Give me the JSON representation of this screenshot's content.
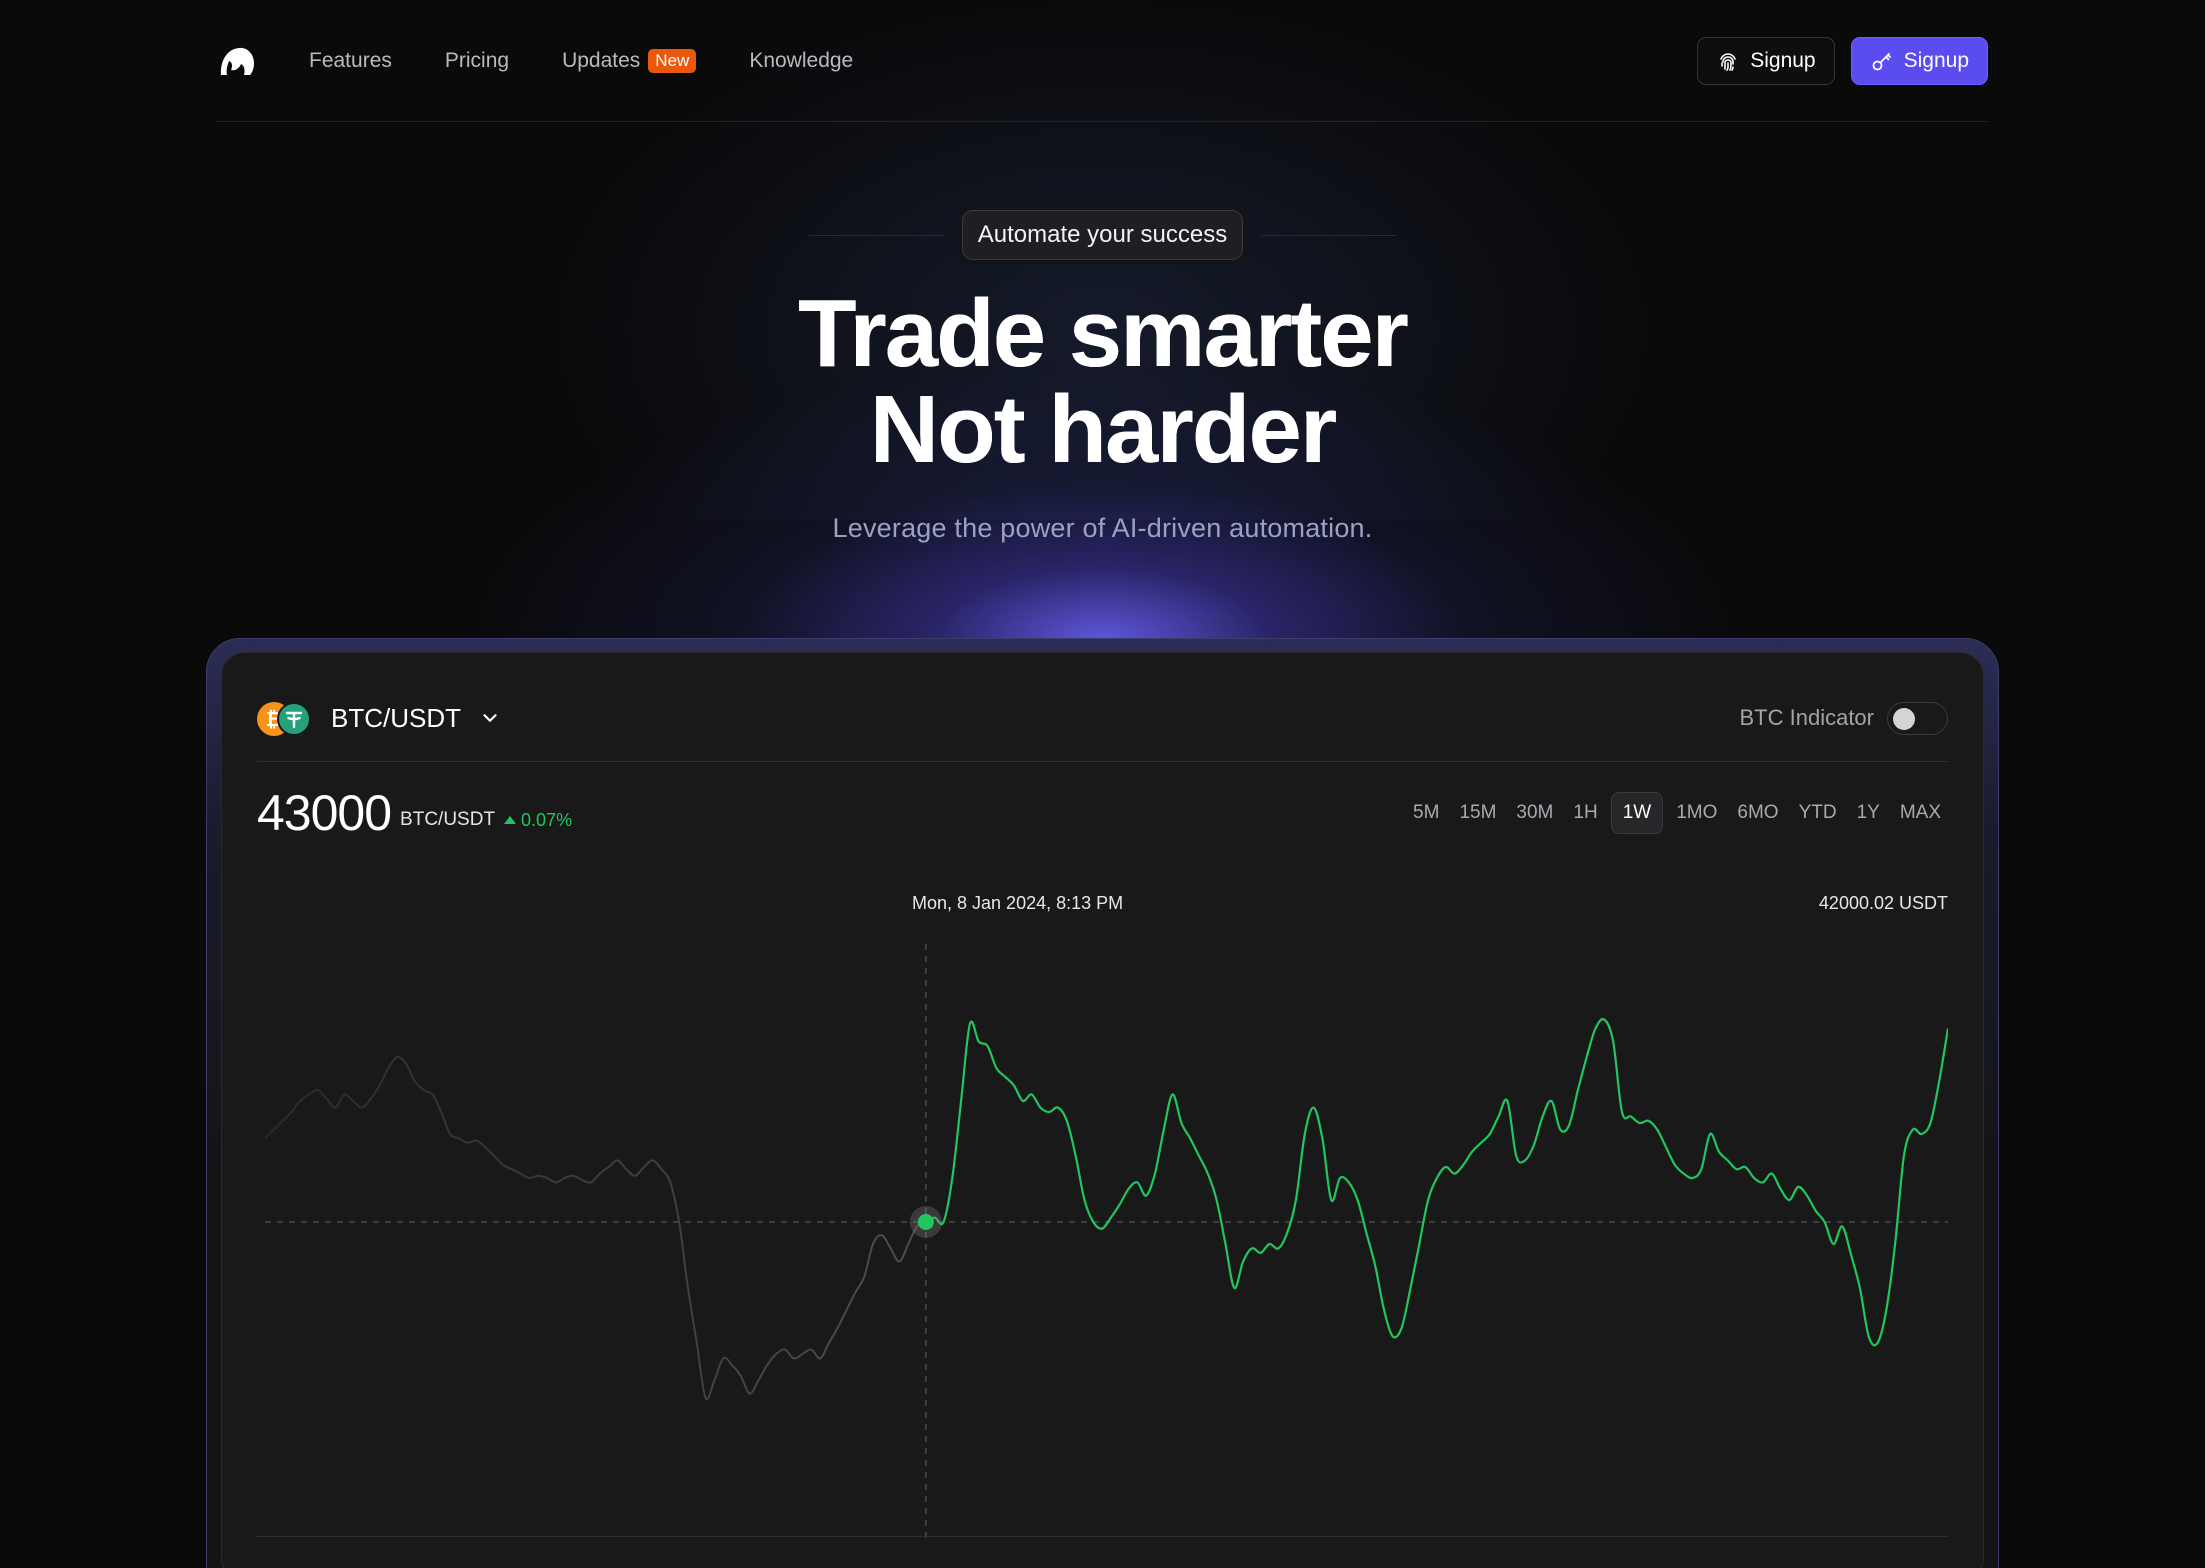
{
  "nav": {
    "links": [
      {
        "label": "Features"
      },
      {
        "label": "Pricing"
      },
      {
        "label": "Updates",
        "badge": "New"
      },
      {
        "label": "Knowledge"
      }
    ],
    "signup_outline": "Signup",
    "signup_primary": "Signup",
    "icons": {
      "logo": "cloud-logo-icon",
      "fingerprint": "fingerprint-icon",
      "key": "key-icon"
    }
  },
  "hero": {
    "pill": "Automate your success",
    "headline_line1": "Trade smarter",
    "headline_line2": "Not harder",
    "subline": "Leverage the power of AI-driven automation."
  },
  "widget": {
    "pair": "BTC/USDT",
    "indicator_label": "BTC Indicator",
    "indicator_on": false,
    "price": "43000",
    "price_pair": "BTC/USDT",
    "change": "0.07%",
    "ranges": [
      "5M",
      "15M",
      "30M",
      "1H",
      "1W",
      "1MO",
      "6MO",
      "YTD",
      "1Y",
      "MAX"
    ],
    "active_range": "1W",
    "hover_date": "Mon, 8 Jan 2024, 8:13 PM",
    "hover_price": "42000.02 USDT"
  },
  "colors": {
    "accent": "#5b4cf0",
    "positive": "#22c55e",
    "badge": "#ea580c",
    "btc": "#f7931a",
    "usdt": "#26a17b"
  },
  "chart_data": {
    "type": "line",
    "title": "",
    "xlabel": "",
    "ylabel": "",
    "grid": false,
    "series": [
      {
        "values": [
          0.38,
          0.42,
          0.46,
          0.5,
          0.55,
          0.58,
          0.6,
          0.56,
          0.52,
          0.58,
          0.55,
          0.52,
          0.56,
          0.62,
          0.7,
          0.75,
          0.72,
          0.64,
          0.6,
          0.58,
          0.5,
          0.4,
          0.38,
          0.36,
          0.37,
          0.34,
          0.3,
          0.26,
          0.24,
          0.22,
          0.2,
          0.21,
          0.2,
          0.18,
          0.2,
          0.21,
          0.19,
          0.18,
          0.22,
          0.25,
          0.28,
          0.24,
          0.21,
          0.25,
          0.28,
          0.24,
          0.18,
          0.0,
          -0.3,
          -0.55,
          -0.8,
          -0.72,
          -0.62,
          -0.65,
          -0.7,
          -0.78,
          -0.72,
          -0.65,
          -0.6,
          -0.58,
          -0.62,
          -0.6,
          -0.58,
          -0.62,
          -0.55,
          -0.48,
          -0.4,
          -0.32,
          -0.25,
          -0.1,
          -0.06,
          -0.12,
          -0.18,
          -0.1,
          -0.02,
          0.0,
          0.02,
          0.0,
          0.2,
          0.55,
          0.9,
          0.82,
          0.8,
          0.7,
          0.66,
          0.62,
          0.55,
          0.58,
          0.52,
          0.5,
          0.52,
          0.46,
          0.3,
          0.1,
          0.0,
          -0.03,
          0.02,
          0.08,
          0.15,
          0.18,
          0.12,
          0.22,
          0.42,
          0.58,
          0.45,
          0.38,
          0.3,
          0.22,
          0.1,
          -0.1,
          -0.3,
          -0.18,
          -0.12,
          -0.14,
          -0.1,
          -0.12,
          -0.05,
          0.1,
          0.4,
          0.52,
          0.38,
          0.1,
          0.2,
          0.18,
          0.1,
          -0.05,
          -0.2,
          -0.4,
          -0.52,
          -0.48,
          -0.3,
          -0.1,
          0.1,
          0.2,
          0.25,
          0.22,
          0.26,
          0.32,
          0.36,
          0.4,
          0.48,
          0.55,
          0.3,
          0.28,
          0.35,
          0.48,
          0.55,
          0.42,
          0.44,
          0.6,
          0.75,
          0.88,
          0.92,
          0.82,
          0.5,
          0.48,
          0.45,
          0.46,
          0.42,
          0.34,
          0.26,
          0.22,
          0.2,
          0.24,
          0.4,
          0.32,
          0.28,
          0.24,
          0.25,
          0.2,
          0.18,
          0.22,
          0.15,
          0.1,
          0.16,
          0.12,
          0.05,
          0.0,
          -0.1,
          -0.02,
          -0.15,
          -0.3,
          -0.52,
          -0.55,
          -0.4,
          -0.1,
          0.3,
          0.42,
          0.4,
          0.45,
          0.64,
          0.88
        ],
        "cursor_index": 75,
        "reference_level": 0.0
      }
    ]
  }
}
